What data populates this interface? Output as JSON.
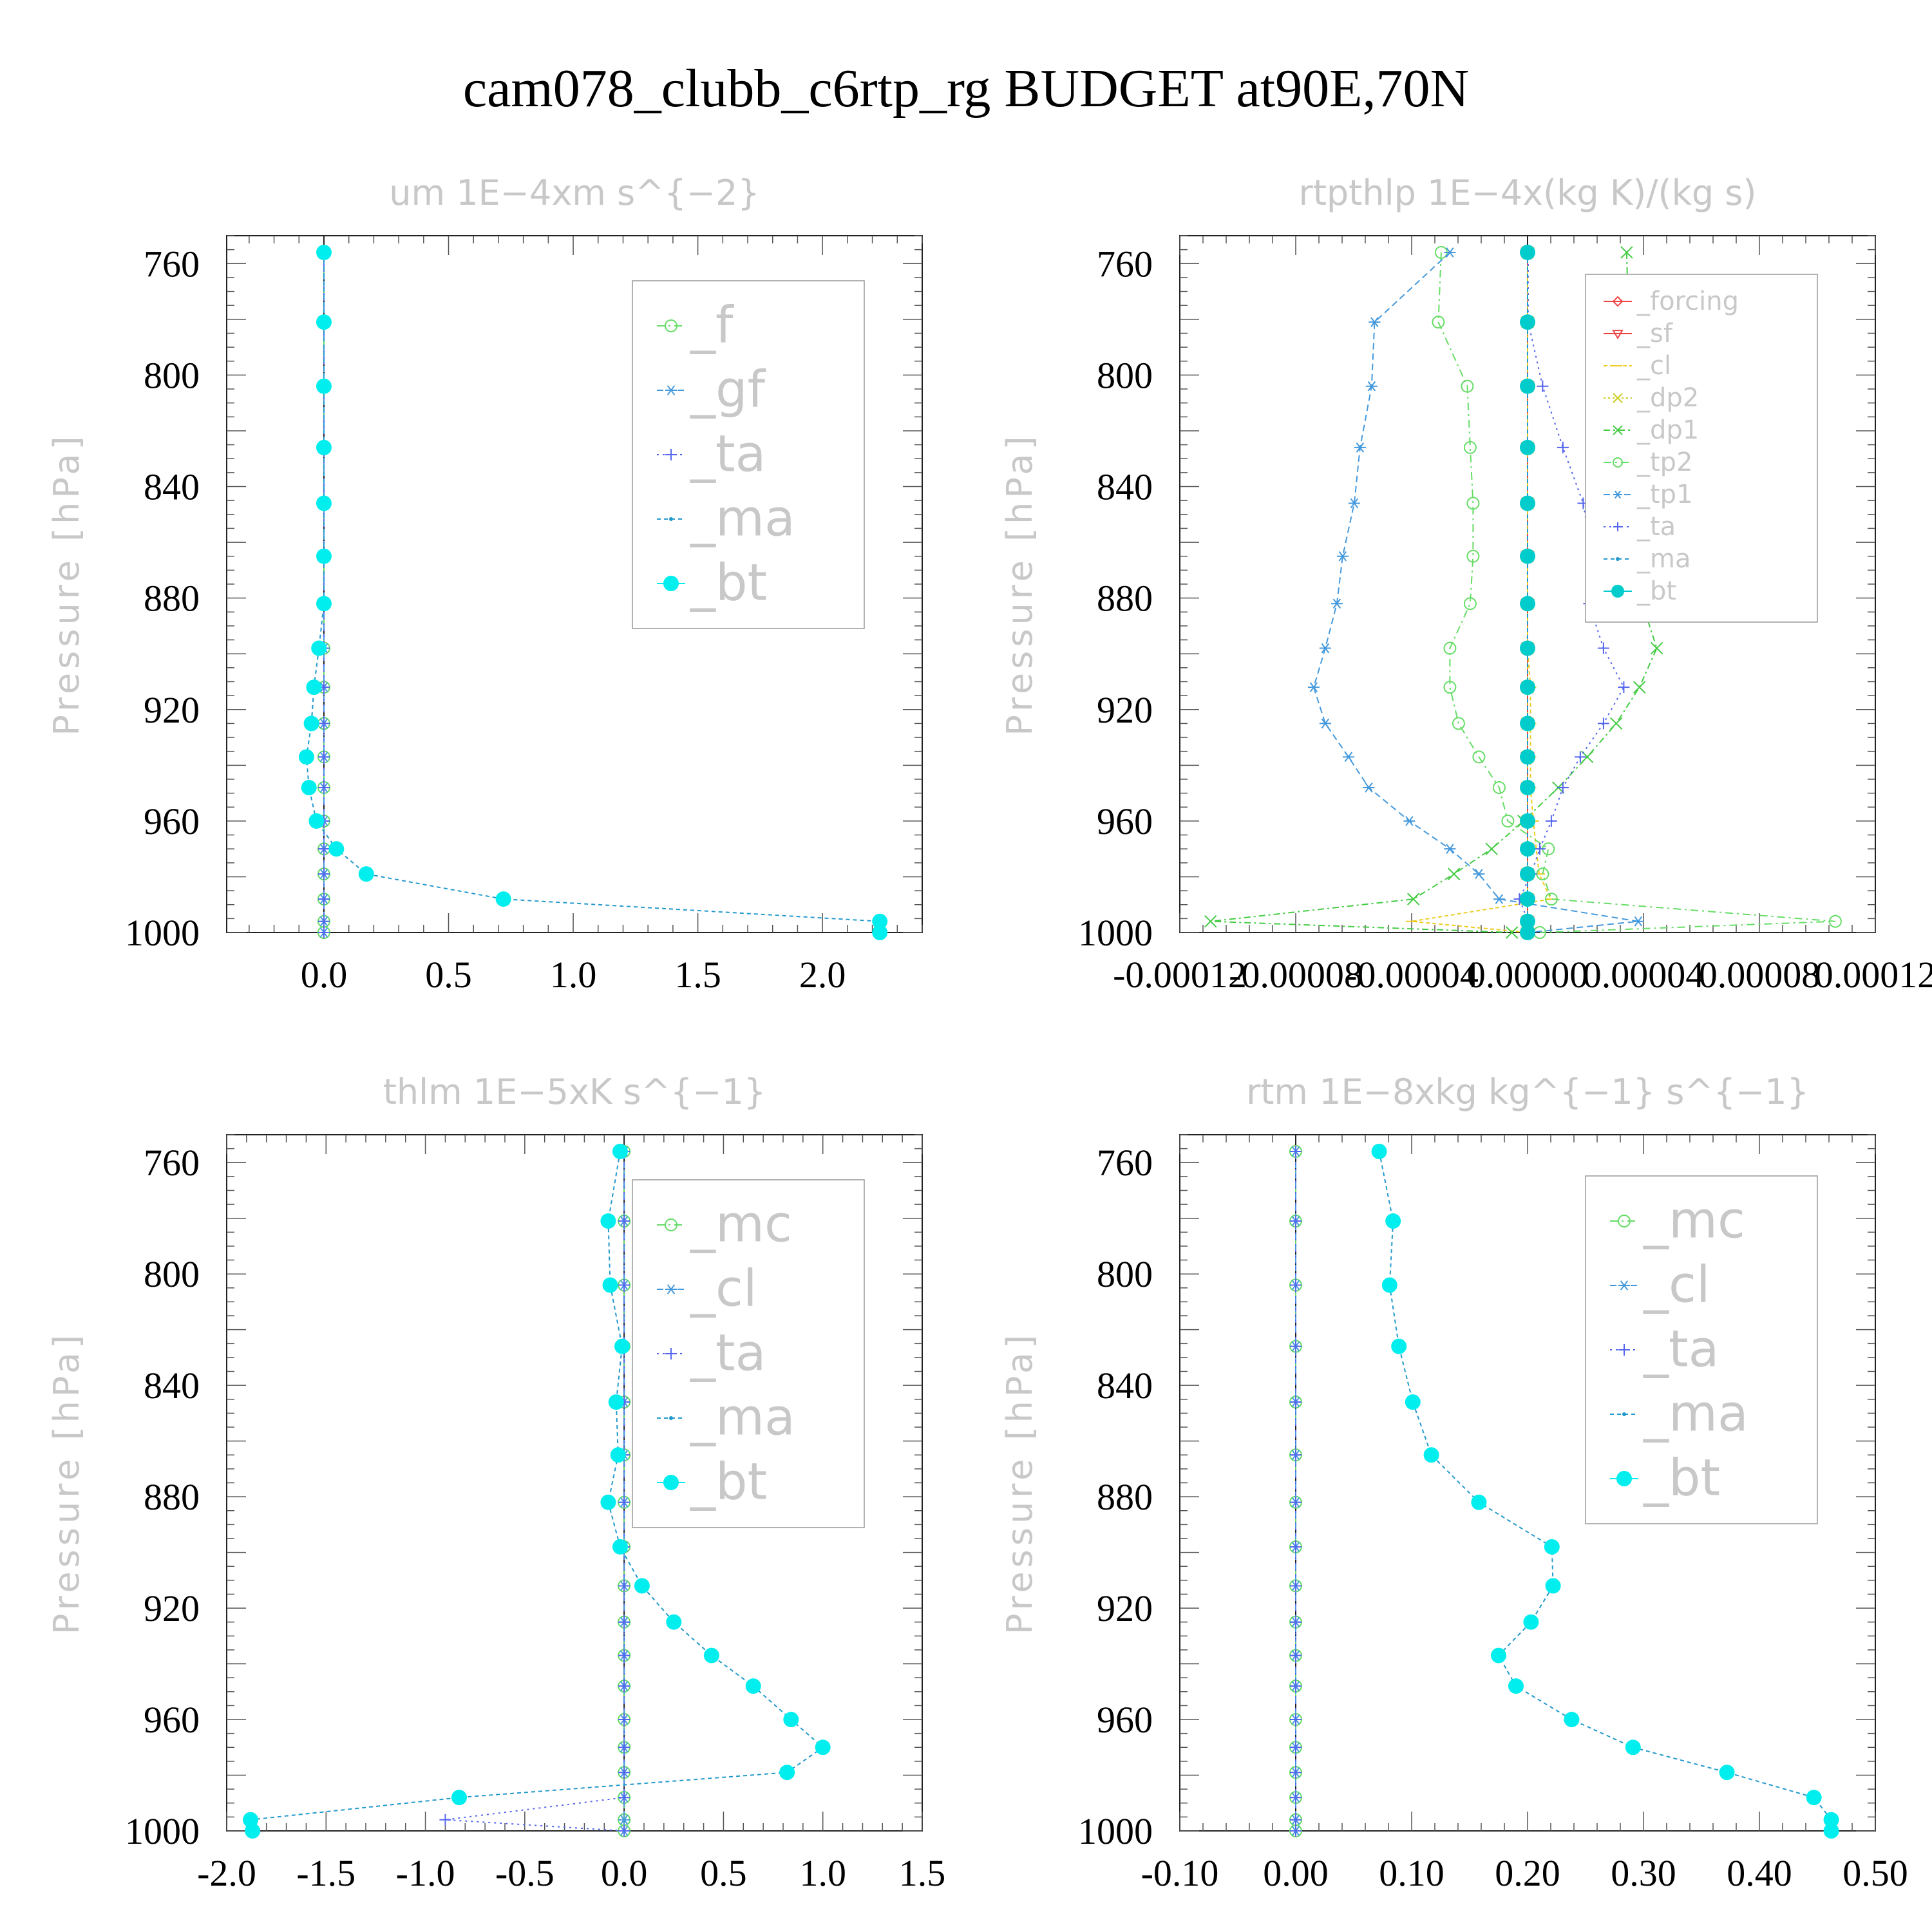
{
  "title": "cam078_clubb_c6rtp_rg  BUDGET at90E,70N",
  "chart_data": [
    {
      "type": "line",
      "title": "um   1E−4xm s^{−2}",
      "ylabel": "Pressure [hPa]",
      "xlabel": "",
      "xlim": [
        -0.39,
        2.4
      ],
      "ylim": [
        1000,
        750
      ],
      "xticks": [
        0.0,
        0.5,
        1.0,
        1.5,
        2.0
      ],
      "xtick_labels": [
        "0.0",
        "0.5",
        "1.0",
        "1.5",
        "2.0"
      ],
      "yticks": [
        760,
        800,
        840,
        880,
        920,
        960,
        1000
      ],
      "ytick_labels": [
        "760",
        "800",
        "840",
        "880",
        "920",
        "960",
        "1000"
      ],
      "zero_line": 0,
      "legend_labels": [
        "_f",
        "_gf",
        "_ta",
        "_ma",
        "_bt"
      ],
      "levels": [
        756,
        781,
        804,
        826,
        846,
        865,
        882,
        898,
        912,
        925,
        937,
        948,
        960,
        970,
        979,
        988,
        996,
        1000
      ],
      "series": [
        {
          "name": "_f",
          "color": "#66dd66",
          "marker": "circle",
          "dash": "12 6 3 6",
          "values": [
            0,
            0,
            0,
            0,
            0,
            0,
            0,
            0,
            0,
            0,
            0,
            0,
            0,
            0,
            0,
            0,
            0,
            0
          ]
        },
        {
          "name": "_gf",
          "color": "#4499dd",
          "marker": "asterisk",
          "dash": "10 6",
          "values": [
            0,
            0,
            0,
            0,
            0,
            0,
            0,
            0,
            0,
            0,
            0,
            0,
            0,
            0,
            0,
            0,
            0,
            0
          ]
        },
        {
          "name": "_ta",
          "color": "#5566ee",
          "marker": "plus",
          "dash": "3 6",
          "values": [
            0,
            0,
            0,
            0,
            0,
            0,
            0,
            0,
            0,
            0,
            0,
            0,
            0,
            0,
            0,
            0,
            0,
            0
          ]
        },
        {
          "name": "_ma",
          "color": "#2299cc",
          "marker": "dot",
          "dash": "6 5",
          "values": [
            0,
            0,
            0,
            0,
            0,
            0,
            0,
            -0.02,
            -0.04,
            -0.05,
            -0.07,
            -0.06,
            -0.03,
            0.05,
            0.17,
            0.72,
            2.23,
            2.23
          ]
        },
        {
          "name": "_bt",
          "color": "#00eeee",
          "marker": "filled",
          "dash": "",
          "values": [
            0,
            0,
            0,
            0,
            0,
            0,
            0,
            -0.02,
            -0.04,
            -0.05,
            -0.07,
            -0.06,
            -0.03,
            0.05,
            0.17,
            0.72,
            2.23,
            2.23
          ]
        }
      ]
    },
    {
      "type": "line",
      "title": "rtpthlp   1E−4x(kg K)/(kg s)",
      "ylabel": "Pressure [hPa]",
      "xlabel": "",
      "xlim": [
        -0.00012,
        0.00012
      ],
      "ylim": [
        1000,
        750
      ],
      "xticks": [
        -0.00012,
        -8e-05,
        -4e-05,
        0.0,
        4e-05,
        8e-05,
        0.00012
      ],
      "xtick_labels": [
        "-0.00012",
        "-0.00008",
        "-0.00004",
        "0.00000",
        "0.00004",
        "0.00008",
        "0.00012"
      ],
      "yticks": [
        760,
        800,
        840,
        880,
        920,
        960,
        1000
      ],
      "ytick_labels": [
        "760",
        "800",
        "840",
        "880",
        "920",
        "960",
        "1000"
      ],
      "zero_line": 0,
      "legend_labels": [
        "_forcing",
        "_sf",
        "_cl",
        "_dp2",
        "_dp1",
        "_tp2",
        "_tp1",
        "_ta",
        "_ma",
        "_bt"
      ],
      "levels": [
        756,
        781,
        804,
        826,
        846,
        865,
        882,
        898,
        912,
        925,
        937,
        948,
        960,
        970,
        979,
        988,
        996,
        1000
      ],
      "series": [
        {
          "name": "_forcing",
          "color": "#ee4444",
          "marker": "diamond",
          "dash": "",
          "values": [
            0,
            0,
            0,
            0,
            0,
            0,
            0,
            0,
            0,
            0,
            0,
            0,
            0,
            0,
            0,
            0,
            0,
            0
          ]
        },
        {
          "name": "_sf",
          "color": "#ee4444",
          "marker": "triangle",
          "dash": "",
          "values": [
            0,
            0,
            0,
            0,
            0,
            0,
            0,
            0,
            0,
            0,
            0,
            0,
            0,
            0,
            0,
            0,
            0,
            0
          ]
        },
        {
          "name": "_cl",
          "color": "#eecc22",
          "marker": "hline",
          "dash": "6 4",
          "values": [
            0,
            0,
            0,
            0,
            0,
            0,
            0,
            0,
            1e-06,
            1e-06,
            1e-06,
            1e-06,
            2e-06,
            3e-06,
            4e-06,
            8e-06,
            -4e-05,
            0
          ]
        },
        {
          "name": "_dp2",
          "color": "#cccc22",
          "marker": "ex",
          "dash": "3 4",
          "values": [
            0,
            0,
            0,
            0,
            0,
            0,
            0,
            0,
            0,
            0,
            0,
            0,
            0,
            0,
            0,
            0,
            0,
            0
          ]
        },
        {
          "name": "_dp1",
          "color": "#44cc44",
          "marker": "ex",
          "dash": "10 5 3 5",
          "values": [
            3.42e-05,
            3.48e-05,
            3.46e-05,
            3.56e-05,
            3.64e-05,
            3.76e-05,
            3.96e-05,
            4.46e-05,
            3.86e-05,
            3.06e-05,
            2.06e-05,
            1.06e-05,
            -1.4e-06,
            -1.24e-05,
            -2.54e-05,
            -3.94e-05,
            -0.0001094,
            -5.4e-06
          ]
        },
        {
          "name": "_tp2",
          "color": "#66dd66",
          "marker": "circle",
          "dash": "12 6 3 6",
          "values": [
            -2.98e-05,
            -3.08e-05,
            -2.08e-05,
            -1.98e-05,
            -1.88e-05,
            -1.88e-05,
            -1.98e-05,
            -2.68e-05,
            -2.68e-05,
            -2.38e-05,
            -1.68e-05,
            -9.8e-06,
            -6.8e-06,
            7.2e-06,
            5.2e-06,
            8.2e-06,
            0.0001062,
            4.2e-06
          ]
        },
        {
          "name": "_tp1",
          "color": "#4499dd",
          "marker": "asterisk",
          "dash": "10 6",
          "values": [
            -2.68e-05,
            -5.28e-05,
            -5.38e-05,
            -5.78e-05,
            -5.98e-05,
            -6.38e-05,
            -6.58e-05,
            -6.98e-05,
            -7.38e-05,
            -6.98e-05,
            -6.18e-05,
            -5.48e-05,
            -4.08e-05,
            -2.68e-05,
            -1.68e-05,
            -9.8e-06,
            3.82e-05,
            2e-07
          ]
        },
        {
          "name": "_ta",
          "color": "#5566ee",
          "marker": "plus",
          "dash": "3 6",
          "values": [
            2e-07,
            2e-07,
            5.2e-06,
            1.22e-05,
            1.92e-05,
            2.22e-05,
            2.12e-05,
            2.62e-05,
            3.32e-05,
            2.62e-05,
            1.82e-05,
            1.22e-05,
            8.2e-06,
            4.2e-06,
            1.2e-06,
            -2.8e-06,
            2e-07,
            2e-07
          ]
        },
        {
          "name": "_ma",
          "color": "#2299cc",
          "marker": "dot",
          "dash": "6 5",
          "values": [
            0,
            0,
            0,
            0,
            0,
            0,
            0,
            0,
            0,
            0,
            0,
            0,
            0,
            0,
            0,
            0,
            0,
            0
          ]
        },
        {
          "name": "_bt",
          "color": "#00cccc",
          "marker": "filled",
          "dash": "",
          "values": [
            0,
            0,
            0,
            0,
            0,
            0,
            0,
            0,
            0,
            0,
            0,
            0,
            0,
            0,
            0,
            0,
            0,
            0
          ]
        }
      ]
    },
    {
      "type": "line",
      "title": "thlm   1E−5xK s^{−1}",
      "ylabel": "Pressure [hPa]",
      "xlabel": "",
      "xlim": [
        -2.0,
        1.5
      ],
      "ylim": [
        1000,
        750
      ],
      "xticks": [
        -2.0,
        -1.5,
        -1.0,
        -0.5,
        0.0,
        0.5,
        1.0,
        1.5
      ],
      "xtick_labels": [
        "-2.0",
        "-1.5",
        "-1.0",
        "-0.5",
        "0.0",
        "0.5",
        "1.0",
        "1.5"
      ],
      "yticks": [
        760,
        800,
        840,
        880,
        920,
        960,
        1000
      ],
      "ytick_labels": [
        "760",
        "800",
        "840",
        "880",
        "920",
        "960",
        "1000"
      ],
      "zero_line": 0,
      "legend_labels": [
        "_mc",
        "_cl",
        "_ta",
        "_ma",
        "_bt"
      ],
      "levels": [
        756,
        781,
        804,
        826,
        846,
        865,
        882,
        898,
        912,
        925,
        937,
        948,
        960,
        970,
        979,
        988,
        996,
        1000
      ],
      "series": [
        {
          "name": "_mc",
          "color": "#66dd66",
          "marker": "circle",
          "dash": "12 6 3 6",
          "values": [
            0,
            0,
            0,
            0,
            0,
            0,
            0,
            0,
            0,
            0,
            0,
            0,
            0,
            0,
            0,
            0,
            0,
            0
          ]
        },
        {
          "name": "_cl",
          "color": "#4499dd",
          "marker": "asterisk",
          "dash": "10 6",
          "values": [
            0,
            0,
            0,
            0,
            0,
            0,
            0,
            0,
            0,
            0,
            0,
            0,
            0,
            0,
            0,
            0,
            0,
            0
          ]
        },
        {
          "name": "_ta",
          "color": "#5566ee",
          "marker": "plus",
          "dash": "3 6",
          "values": [
            0,
            0,
            0,
            0,
            0,
            0,
            0,
            0,
            0,
            0,
            0,
            0,
            0,
            0,
            0,
            0,
            -0.9,
            0
          ]
        },
        {
          "name": "_ma",
          "color": "#2299cc",
          "marker": "dot",
          "dash": "6 5",
          "values": [
            -0.02,
            -0.08,
            -0.07,
            -0.01,
            -0.04,
            -0.03,
            -0.08,
            -0.02,
            0.09,
            0.25,
            0.44,
            0.65,
            0.84,
            1.0,
            0.82,
            -0.83,
            -1.88,
            -1.87
          ]
        },
        {
          "name": "_bt",
          "color": "#00eeee",
          "marker": "filled",
          "dash": "",
          "values": [
            -0.02,
            -0.08,
            -0.07,
            -0.01,
            -0.04,
            -0.03,
            -0.08,
            -0.02,
            0.09,
            0.25,
            0.44,
            0.65,
            0.84,
            1.0,
            0.82,
            -0.83,
            -1.88,
            -1.87
          ]
        }
      ]
    },
    {
      "type": "line",
      "title": "rtm   1E−8xkg kg^{−1} s^{−1}",
      "ylabel": "Pressure [hPa]",
      "xlabel": "",
      "xlim": [
        -0.1,
        0.5
      ],
      "ylim": [
        1000,
        750
      ],
      "xticks": [
        -0.1,
        0.0,
        0.1,
        0.2,
        0.3,
        0.4,
        0.5
      ],
      "xtick_labels": [
        "-0.10",
        "0.00",
        "0.10",
        "0.20",
        "0.30",
        "0.40",
        "0.50"
      ],
      "yticks": [
        760,
        800,
        840,
        880,
        920,
        960,
        1000
      ],
      "ytick_labels": [
        "760",
        "800",
        "840",
        "880",
        "920",
        "960",
        "1000"
      ],
      "zero_line": 0,
      "legend_labels": [
        "_mc",
        "_cl",
        "_ta",
        "_ma",
        "_bt"
      ],
      "levels": [
        756,
        781,
        804,
        826,
        846,
        865,
        882,
        898,
        912,
        925,
        937,
        948,
        960,
        970,
        979,
        988,
        996,
        1000
      ],
      "series": [
        {
          "name": "_mc",
          "color": "#66dd66",
          "marker": "circle",
          "dash": "12 6 3 6",
          "values": [
            0,
            0,
            0,
            0,
            0,
            0,
            0,
            0,
            0,
            0,
            0,
            0,
            0,
            0,
            0,
            0,
            0,
            0
          ]
        },
        {
          "name": "_cl",
          "color": "#4499dd",
          "marker": "asterisk",
          "dash": "10 6",
          "values": [
            0,
            0,
            0,
            0,
            0,
            0,
            0,
            0,
            0,
            0,
            0,
            0,
            0,
            0,
            0,
            0,
            0,
            0
          ]
        },
        {
          "name": "_ta",
          "color": "#5566ee",
          "marker": "plus",
          "dash": "3 6",
          "values": [
            0,
            0,
            0,
            0,
            0,
            0,
            0,
            0,
            0,
            0,
            0,
            0,
            0,
            0,
            0,
            0,
            0,
            0
          ]
        },
        {
          "name": "_ma",
          "color": "#2299cc",
          "marker": "dot",
          "dash": "6 5",
          "values": [
            0.072,
            0.084,
            0.081,
            0.089,
            0.101,
            0.117,
            0.158,
            0.221,
            0.222,
            0.203,
            0.175,
            0.19,
            0.238,
            0.291,
            0.372,
            0.447,
            0.462,
            0.462
          ]
        },
        {
          "name": "_bt",
          "color": "#00eeee",
          "marker": "filled",
          "dash": "",
          "values": [
            0.072,
            0.084,
            0.081,
            0.089,
            0.101,
            0.117,
            0.158,
            0.221,
            0.222,
            0.203,
            0.175,
            0.19,
            0.238,
            0.291,
            0.372,
            0.447,
            0.462,
            0.462
          ]
        }
      ]
    }
  ]
}
